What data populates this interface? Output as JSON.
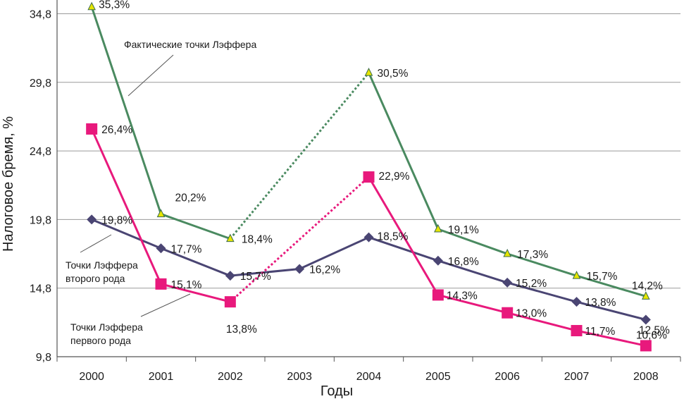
{
  "chart_data": {
    "type": "line",
    "xlabel": "Годы",
    "ylabel": "Налоговое бремя, %",
    "ylim": [
      9.8,
      35.8
    ],
    "yticks": [
      "9,8",
      "14,8",
      "19,8",
      "24,8",
      "29,8",
      "34,8"
    ],
    "ytick_values": [
      9.8,
      14.8,
      19.8,
      24.8,
      29.8,
      34.8
    ],
    "categories": [
      "2000",
      "2001",
      "2002",
      "2003",
      "2004",
      "2005",
      "2006",
      "2007",
      "2008"
    ],
    "grid": "horizontal",
    "series": [
      {
        "key": "actual",
        "color": "#4a8a60",
        "marker": "triangle",
        "marker_color": "#e6e600",
        "values": [
          35.3,
          20.2,
          18.4,
          null,
          30.5,
          19.1,
          17.3,
          15.7,
          14.2
        ],
        "labels": [
          "35,3%",
          "20,2%",
          "18,4%",
          "",
          "30,5%",
          "19,1%",
          "17,3%",
          "15,7%",
          "14,2%"
        ],
        "dotted_gap": [
          2,
          4
        ]
      },
      {
        "key": "second",
        "color": "#4a4573",
        "marker": "diamond",
        "marker_color": "#4a4573",
        "values": [
          19.8,
          17.7,
          15.7,
          16.2,
          18.5,
          16.8,
          15.2,
          13.8,
          12.5
        ],
        "labels": [
          "19,8%",
          "17,7%",
          "15,7%",
          "16,2%",
          "18,5%",
          "16,8%",
          "15,2%",
          "13,8%",
          "12,5%"
        ]
      },
      {
        "key": "first",
        "color": "#e8197c",
        "marker": "square",
        "marker_color": "#e8197c",
        "values": [
          26.4,
          15.1,
          13.8,
          null,
          22.9,
          14.3,
          13.0,
          11.7,
          10.6
        ],
        "labels": [
          "26,4%",
          "15,1%",
          "13,8%",
          "",
          "22,9%",
          "14,3%",
          "13,0%",
          "11,7%",
          "10,6%"
        ],
        "dotted_gap": [
          2,
          4
        ]
      }
    ],
    "annotations": [
      {
        "key": "actual",
        "lines": [
          "Фактические точки Лэффера"
        ]
      },
      {
        "key": "second",
        "lines": [
          "Точки Лэффера",
          "второго рода"
        ]
      },
      {
        "key": "first",
        "lines": [
          "Точки Лэффера",
          "первого рода"
        ]
      }
    ]
  }
}
